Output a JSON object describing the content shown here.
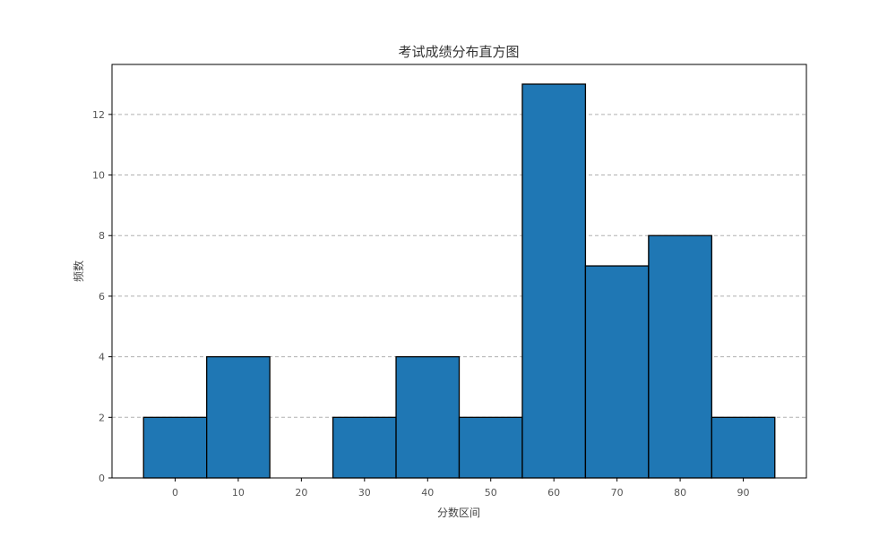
{
  "chart_data": {
    "type": "bar",
    "title": "考试成绩分布直方图",
    "xlabel": "分数区间",
    "ylabel": "频数",
    "categories": [
      "0",
      "10",
      "20",
      "30",
      "40",
      "50",
      "60",
      "70",
      "80",
      "90"
    ],
    "x": [
      0,
      10,
      20,
      30,
      40,
      50,
      60,
      70,
      80,
      90
    ],
    "values": [
      2,
      4,
      0,
      2,
      4,
      2,
      13,
      7,
      8,
      2
    ],
    "bin_width": 10,
    "xlim": [
      -10,
      100
    ],
    "ylim": [
      0,
      13.65
    ],
    "yticks": [
      0,
      2,
      4,
      6,
      8,
      10,
      12
    ],
    "grid": {
      "y": true,
      "x": false,
      "style": "dashed"
    },
    "legend": "none",
    "colors": {
      "bar_fill": "#1f77b4",
      "bar_edge": "#000000",
      "grid": "#b0b0b0",
      "axes": "#000000"
    }
  }
}
